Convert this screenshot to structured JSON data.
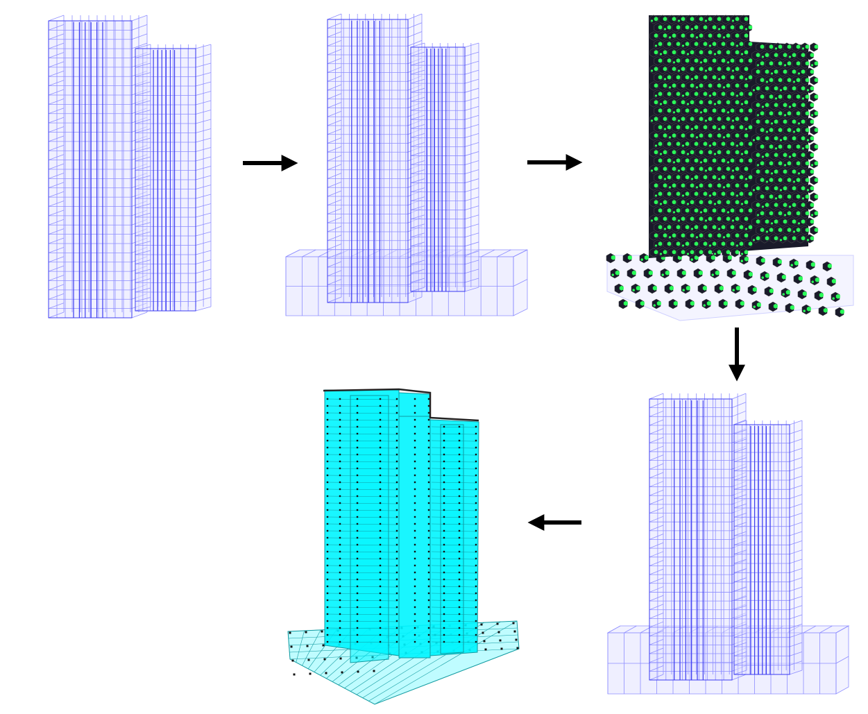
{
  "colors": {
    "wire_blue": "#3b3bf0",
    "wire_blue_light": "#8d8dff",
    "fill_blue": "#e4e4ff",
    "mesh_green": "#2bff5a",
    "mesh_dark": "#1a1a2a",
    "solid_cyan": "#00f5ff",
    "cyan_edge": "#109aa0",
    "node_black": "#111111",
    "arrow": "#000000"
  },
  "panels": [
    {
      "id": "panel-1",
      "kind": "superstructure-wireframe",
      "podium": false
    },
    {
      "id": "panel-2",
      "kind": "superstructure-with-podium-wireframe",
      "podium": true
    },
    {
      "id": "panel-3",
      "kind": "meshed-solid-elements",
      "podium": true
    },
    {
      "id": "panel-4",
      "kind": "superstructure-with-podium-wireframe",
      "podium": true
    },
    {
      "id": "panel-5",
      "kind": "extruded-cyan-model",
      "podium": true
    }
  ],
  "arrows": [
    {
      "id": "arrow-1",
      "direction": "right"
    },
    {
      "id": "arrow-2",
      "direction": "right"
    },
    {
      "id": "arrow-3",
      "direction": "down"
    },
    {
      "id": "arrow-4",
      "direction": "left"
    }
  ]
}
